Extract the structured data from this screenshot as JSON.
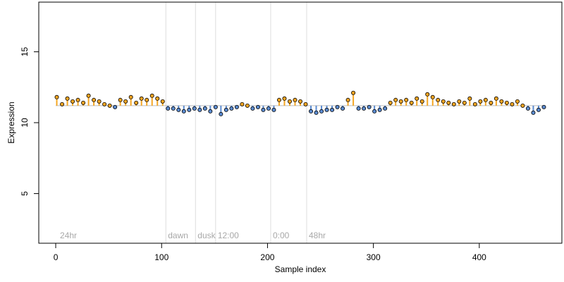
{
  "chart_data": {
    "type": "scatter",
    "title": "",
    "xlabel": "Sample index",
    "ylabel": "Expression",
    "xlim": [
      -16,
      478
    ],
    "ylim": [
      1.5,
      18.5
    ],
    "x_ticks": [
      0,
      100,
      200,
      300,
      400
    ],
    "y_ticks": [
      5,
      10,
      15
    ],
    "baseline": 11.2,
    "colors": {
      "above": "#F5A623",
      "below": "#5B8BD0",
      "point_edge": "#000000",
      "marker_line": "#dddddd",
      "marker_text": "#a8a8a8"
    },
    "markers": [
      {
        "x": 2,
        "label": "24hr",
        "show_line": false
      },
      {
        "x": 104,
        "label": "dawn",
        "show_line": true
      },
      {
        "x": 132,
        "label": "dusk",
        "show_line": true
      },
      {
        "x": 151,
        "label": "12:00",
        "show_line": true
      },
      {
        "x": 203,
        "label": "0:00",
        "show_line": true
      },
      {
        "x": 237,
        "label": "48hr",
        "show_line": true
      }
    ],
    "series": [
      {
        "x": [
          1,
          6,
          11,
          16,
          21,
          26,
          31,
          36,
          41,
          46,
          51,
          56,
          61,
          66,
          71,
          76,
          81,
          86,
          91,
          96,
          101,
          106,
          111,
          116,
          121,
          126,
          131,
          136,
          141,
          146,
          151,
          156,
          161,
          166,
          171,
          176,
          181,
          186,
          191,
          196,
          201,
          206,
          211,
          216,
          221,
          226,
          231,
          236,
          241,
          246,
          251,
          256,
          261,
          266,
          271,
          276,
          281,
          286,
          291,
          296,
          301,
          306,
          311,
          316,
          321,
          326,
          331,
          336,
          341,
          346,
          351,
          356,
          361,
          366,
          371,
          376,
          381,
          386,
          391,
          396,
          401,
          406,
          411,
          416,
          421,
          426,
          431,
          436,
          441,
          446,
          451,
          456,
          461
        ],
        "values": [
          11.8,
          11.3,
          11.7,
          11.5,
          11.6,
          11.4,
          11.9,
          11.6,
          11.5,
          11.3,
          11.2,
          11.1,
          11.6,
          11.5,
          11.8,
          11.4,
          11.7,
          11.6,
          11.9,
          11.7,
          11.5,
          11.0,
          11.0,
          10.9,
          10.8,
          10.9,
          11.0,
          10.9,
          11.0,
          10.8,
          11.1,
          10.6,
          10.9,
          11.0,
          11.1,
          11.3,
          11.2,
          11.0,
          11.1,
          10.9,
          11.0,
          10.9,
          11.6,
          11.7,
          11.5,
          11.6,
          11.5,
          11.3,
          10.8,
          10.7,
          10.8,
          10.9,
          10.9,
          11.1,
          11.0,
          11.6,
          12.1,
          11.0,
          11.0,
          11.1,
          10.8,
          10.9,
          11.0,
          11.4,
          11.6,
          11.5,
          11.6,
          11.4,
          11.7,
          11.5,
          12.0,
          11.8,
          11.6,
          11.5,
          11.4,
          11.3,
          11.5,
          11.4,
          11.7,
          11.3,
          11.5,
          11.6,
          11.4,
          11.7,
          11.5,
          11.4,
          11.3,
          11.5,
          11.2,
          11.0,
          10.7,
          10.9,
          11.1
        ]
      }
    ]
  }
}
